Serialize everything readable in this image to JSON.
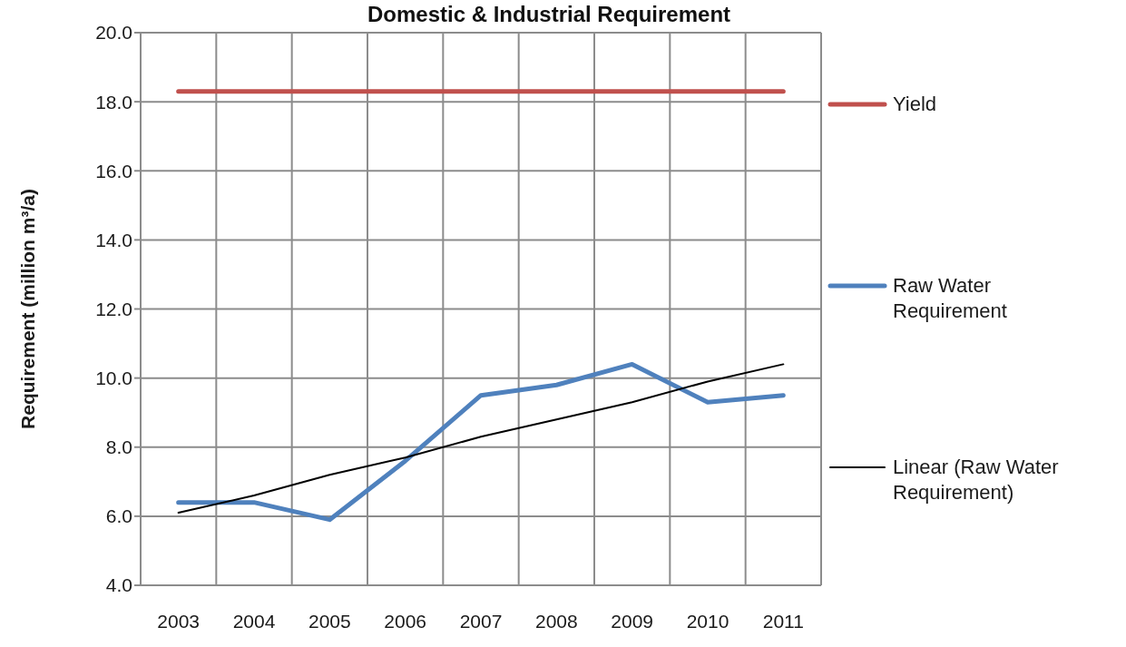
{
  "chart_data": {
    "type": "line",
    "title": "Domestic & Industrial Requirement",
    "ylabel": "Requirement (million m³/a)",
    "categories": [
      "2003",
      "2004",
      "2005",
      "2006",
      "2007",
      "2008",
      "2009",
      "2010",
      "2011"
    ],
    "series": [
      {
        "name": "Yield",
        "color": "#c0504d",
        "values": [
          18.3,
          18.3,
          18.3,
          18.3,
          18.3,
          18.3,
          18.3,
          18.3,
          18.3
        ]
      },
      {
        "name": "Raw Water Requirement",
        "color": "#4f81bd",
        "values": [
          6.4,
          6.4,
          5.9,
          7.6,
          9.5,
          9.8,
          10.4,
          9.3,
          9.5
        ]
      },
      {
        "name": "Linear (Raw Water Requirement)",
        "color": "#000000",
        "values": [
          6.1,
          6.6,
          7.2,
          7.7,
          8.3,
          8.8,
          9.3,
          9.9,
          10.4
        ]
      }
    ],
    "ylim": [
      4,
      20
    ],
    "yticks": [
      {
        "value": 4,
        "label": "4.0"
      },
      {
        "value": 6,
        "label": "6.0"
      },
      {
        "value": 8,
        "label": "8.0"
      },
      {
        "value": 10,
        "label": "10.0"
      },
      {
        "value": 12,
        "label": "12.0"
      },
      {
        "value": 14,
        "label": "14.0"
      },
      {
        "value": 16,
        "label": "16.0"
      },
      {
        "value": 18,
        "label": "18.0"
      },
      {
        "value": 20,
        "label": "20.0"
      }
    ],
    "grid": true,
    "legend": "right",
    "marker": "none",
    "line_style": "solid"
  }
}
